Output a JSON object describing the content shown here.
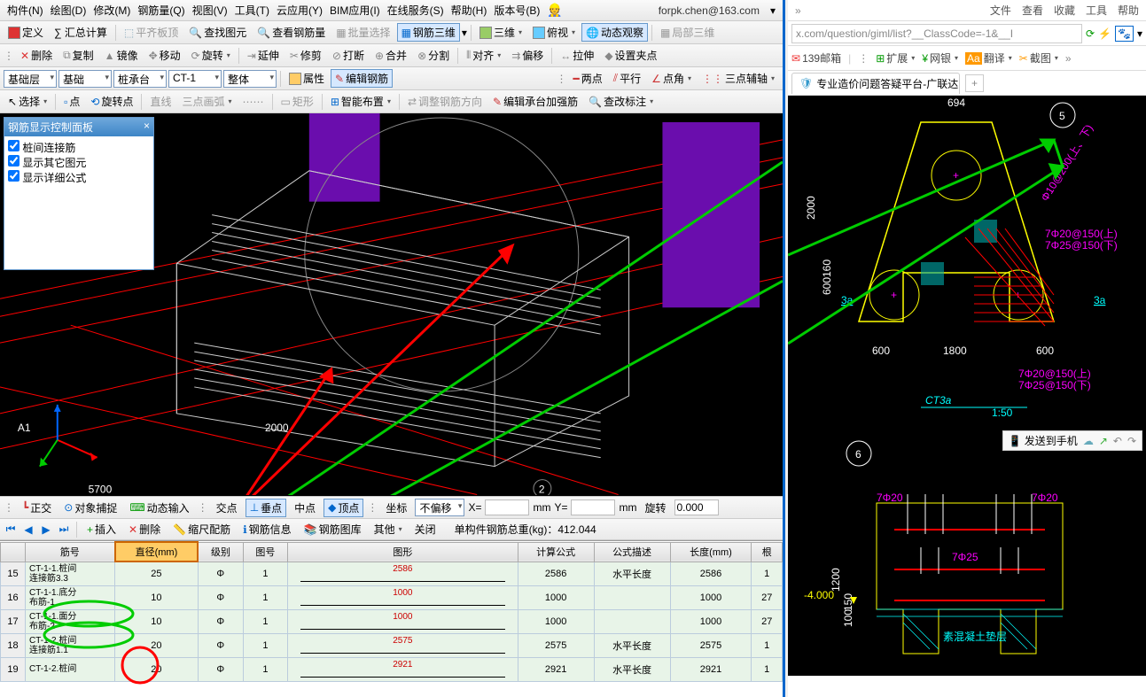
{
  "menubar": {
    "items": [
      "构件(N)",
      "绘图(D)",
      "修改(M)",
      "钢筋量(Q)",
      "视图(V)",
      "工具(T)",
      "云应用(Y)",
      "BIM应用(I)",
      "在线服务(S)",
      "帮助(H)",
      "版本号(B)"
    ],
    "user_email": "forpk.chen@163.com"
  },
  "toolbar1": {
    "define": "定义",
    "sum_calc": "∑ 汇总计算",
    "flat_slab_top": "平齐板顶",
    "find_entity": "查找图元",
    "view_rebar_qty": "查看钢筋量",
    "batch_select": "批量选择",
    "rebar_3d": "钢筋三维",
    "three_d": "三维",
    "bird_view": "俯视",
    "dynamic_view": "动态观察",
    "local_3d": "局部三维"
  },
  "toolbar2": {
    "delete": "删除",
    "copy": "复制",
    "mirror": "镜像",
    "move": "移动",
    "rotate": "旋转",
    "extend": "延伸",
    "trim": "修剪",
    "break": "打断",
    "merge": "合并",
    "split": "分割",
    "align": "对齐",
    "offset": "偏移",
    "stretch": "拉伸",
    "set_grip": "设置夹点"
  },
  "toolbar3": {
    "layer_group": "基础层",
    "layer": "基础",
    "component_type": "桩承台",
    "component": "CT-1",
    "part": "整体",
    "attribute": "属性",
    "edit_rebar": "编辑钢筋",
    "two_point": "两点",
    "parallel": "平行",
    "point_angle": "点角",
    "three_point_aux": "三点辅轴"
  },
  "toolbar4": {
    "select": "选择",
    "point": "点",
    "rotate_point": "旋转点",
    "line": "直线",
    "three_pt_arc": "三点画弧",
    "rect": "矩形",
    "smart_layout": "智能布置",
    "adjust_rebar_dir": "调整钢筋方向",
    "edit_cap_reinforce": "编辑承台加强筋",
    "view_label": "查改标注"
  },
  "control_panel": {
    "title": "钢筋显示控制面板",
    "items": [
      "桩间连接筋",
      "显示其它图元",
      "显示详细公式"
    ]
  },
  "viewport": {
    "axis_label_a1": "A1",
    "dim_2000": "2000",
    "dim_5700": "5700",
    "node_2": "2"
  },
  "status_bar": {
    "ortho": "正交",
    "osnap": "对象捕捉",
    "dyn_input": "动态输入",
    "intersect": "交点",
    "perp": "垂点",
    "mid": "中点",
    "vertex": "顶点",
    "coord": "坐标",
    "no_offset": "不偏移",
    "x_label": "X=",
    "y_label": "Y=",
    "mm1": "mm",
    "mm2": "mm",
    "rotate": "旋转",
    "rotate_val": "0.000"
  },
  "grid_toolbar": {
    "insert": "插入",
    "delete": "删除",
    "scale": "缩尺配筋",
    "rebar_info": "钢筋信息",
    "rebar_lib": "钢筋图库",
    "other": "其他",
    "close": "关闭",
    "total_label": "单构件钢筋总重(kg)：",
    "total_value": "412.044"
  },
  "grid": {
    "headers": [
      "",
      "筋号",
      "直径(mm)",
      "级别",
      "图号",
      "图形",
      "计算公式",
      "公式描述",
      "长度(mm)",
      "根"
    ],
    "rows": [
      {
        "n": "15",
        "name": "CT-1-1.桩间\n连接筋3.3",
        "dia": "25",
        "grade": "Φ",
        "fig": "1",
        "shape_val": "2586",
        "calc": "2586",
        "desc": "水平长度",
        "len": "2586",
        "cnt": "1"
      },
      {
        "n": "16",
        "name": "CT-1-1.底分\n布筋-1",
        "dia": "10",
        "grade": "Φ",
        "fig": "1",
        "shape_val": "1000",
        "calc": "1000",
        "desc": "",
        "len": "1000",
        "cnt": "27"
      },
      {
        "n": "17",
        "name": "CT-1-1.面分\n布筋-2",
        "dia": "10",
        "grade": "Φ",
        "fig": "1",
        "shape_val": "1000",
        "calc": "1000",
        "desc": "",
        "len": "1000",
        "cnt": "27"
      },
      {
        "n": "18",
        "name": "CT-1-2.桩间\n连接筋1.1",
        "dia": "20",
        "grade": "Φ",
        "fig": "1",
        "shape_val": "2575",
        "calc": "2575",
        "desc": "水平长度",
        "len": "2575",
        "cnt": "1"
      },
      {
        "n": "19",
        "name": "CT-1-2.桩间",
        "dia": "20",
        "grade": "Φ",
        "fig": "1",
        "shape_val": "2921",
        "calc": "2921",
        "desc": "水平长度",
        "len": "2921",
        "cnt": "1"
      }
    ]
  },
  "browser": {
    "top_links": [
      "文件",
      "查看",
      "收藏",
      "工具",
      "帮助"
    ],
    "url": "x.com/question/giml/list?__ClassCode=-1&__I",
    "toolbar": {
      "mailbox": "139邮箱",
      "extend": "扩展",
      "netbank": "网银",
      "translate": "翻译",
      "screenshot": "截图"
    },
    "tab_title": "专业造价问题答疑平台-广联达…",
    "send_phone": "发送到手机",
    "diagram": {
      "circle_label": "5",
      "dims_top": "694",
      "dim_left_2000": "2000",
      "dim_left_600": "600",
      "dim_left_160": "160",
      "label_3a_left": "3a",
      "label_3a_right": "3a",
      "bottom_dims": [
        "600",
        "1800",
        "600"
      ],
      "rebar_notes_right": [
        "Φ10@200(上、下)",
        "7Φ20@150(上)",
        "7Φ25@150(下)"
      ],
      "rebar_notes_bottom": [
        "7Φ20@150(上)",
        "7Φ25@150(下)"
      ],
      "title": "CT3a",
      "scale": "1:50",
      "section_label": "6",
      "sec_dims": {
        "t20l": "7Φ20",
        "t20r": "7Φ20",
        "t25": "7Φ25",
        "h1200": "1200",
        "h150": "150",
        "h100": "100",
        "elev": "-4.000",
        "note": "素混凝土垫层"
      }
    }
  },
  "colors": {
    "accent_blue": "#0066cc",
    "red_annot": "#ff0000",
    "green_annot": "#00cc00",
    "magenta": "#ff00ff",
    "cyan": "#00ffff",
    "yellow": "#ffff00",
    "purple_col": "#6a0dad"
  }
}
